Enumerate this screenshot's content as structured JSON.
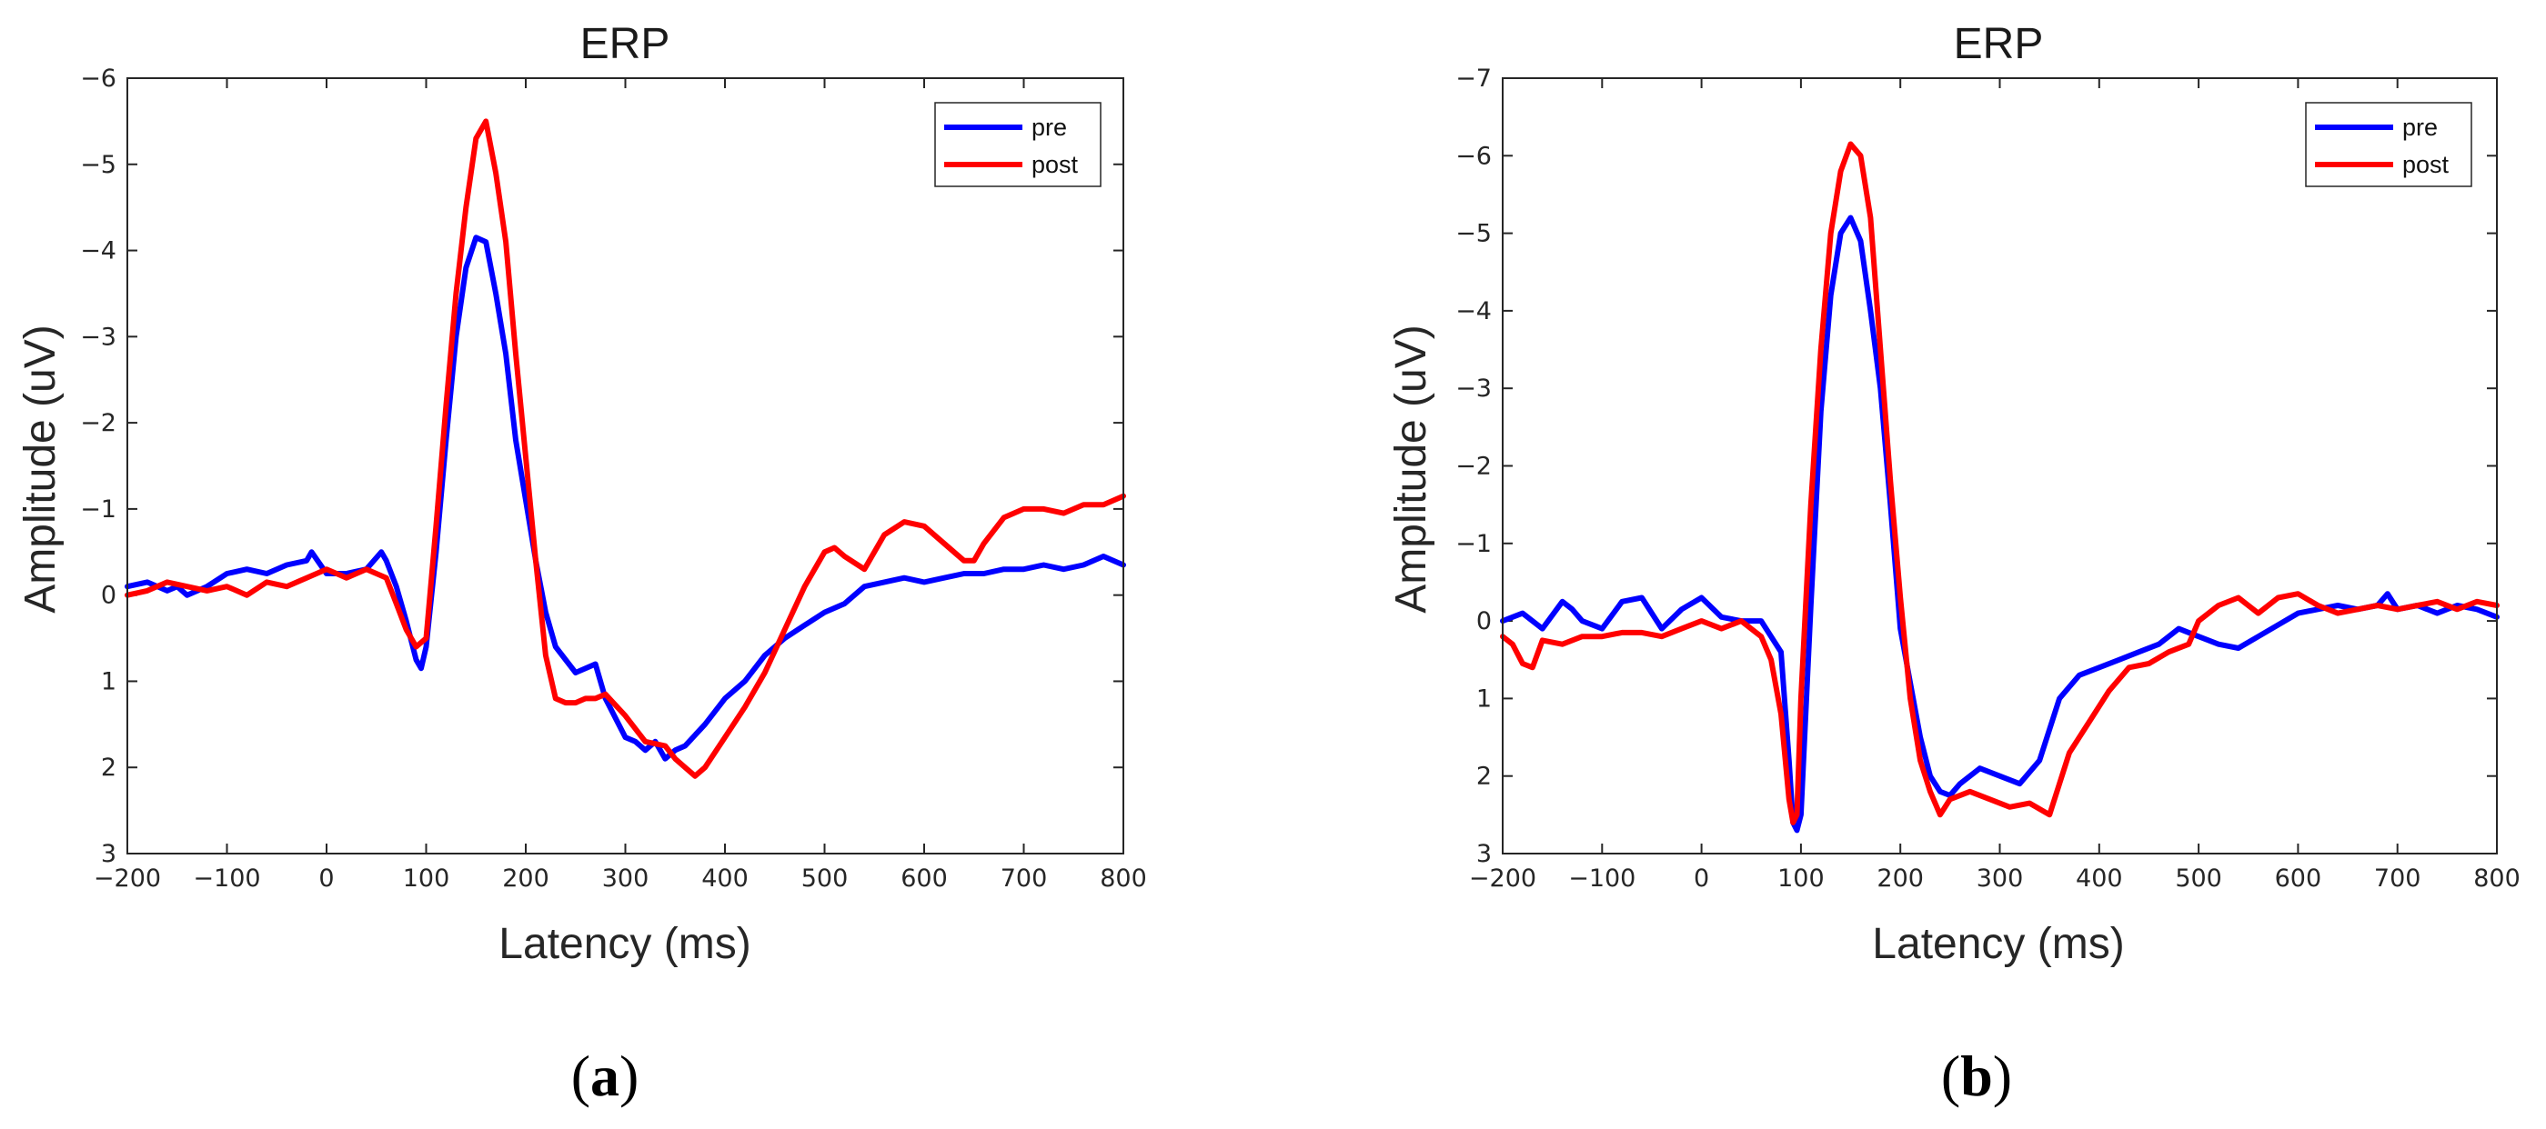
{
  "chart_data": [
    {
      "type": "line",
      "panel": "(a)",
      "panel_letter": "a",
      "title": "ERP",
      "xlabel": "Latency (ms)",
      "ylabel": "Amplitude (uV)",
      "xlim": [
        -200,
        800
      ],
      "ylim": [
        -6,
        3
      ],
      "y_reversed": true,
      "xticks": [
        -200,
        -100,
        0,
        100,
        200,
        300,
        400,
        500,
        600,
        700,
        800
      ],
      "yticks": [
        -6,
        -5,
        -4,
        -3,
        -2,
        -1,
        0,
        1,
        2,
        3
      ],
      "grid": false,
      "legend_position": "top-right",
      "series": [
        {
          "name": "pre",
          "color": "#0000ff",
          "x": [
            -200,
            -180,
            -160,
            -150,
            -140,
            -120,
            -100,
            -80,
            -60,
            -40,
            -20,
            -15,
            0,
            20,
            40,
            55,
            60,
            70,
            80,
            90,
            95,
            100,
            110,
            120,
            130,
            140,
            150,
            160,
            170,
            180,
            190,
            200,
            210,
            220,
            230,
            250,
            260,
            270,
            280,
            300,
            310,
            320,
            330,
            340,
            350,
            360,
            380,
            400,
            420,
            440,
            460,
            480,
            500,
            520,
            540,
            560,
            580,
            600,
            620,
            640,
            660,
            680,
            700,
            720,
            740,
            760,
            780,
            790,
            800
          ],
          "y": [
            -0.1,
            -0.15,
            -0.05,
            -0.1,
            0,
            -0.1,
            -0.25,
            -0.3,
            -0.25,
            -0.35,
            -0.4,
            -0.5,
            -0.25,
            -0.25,
            -0.3,
            -0.5,
            -0.4,
            -0.1,
            0.3,
            0.75,
            0.85,
            0.6,
            -0.5,
            -1.8,
            -3.0,
            -3.8,
            -4.15,
            -4.1,
            -3.5,
            -2.8,
            -1.8,
            -1.1,
            -0.4,
            0.2,
            0.6,
            0.9,
            0.85,
            0.8,
            1.2,
            1.65,
            1.7,
            1.8,
            1.7,
            1.9,
            1.8,
            1.75,
            1.5,
            1.2,
            1.0,
            0.7,
            0.5,
            0.35,
            0.2,
            0.1,
            -0.1,
            -0.15,
            -0.2,
            -0.15,
            -0.2,
            -0.25,
            -0.25,
            -0.3,
            -0.3,
            -0.35,
            -0.3,
            -0.35,
            -0.45,
            -0.4,
            -0.35
          ]
        },
        {
          "name": "post",
          "color": "#ff0000",
          "x": [
            -200,
            -180,
            -160,
            -140,
            -120,
            -100,
            -80,
            -60,
            -40,
            -20,
            0,
            20,
            40,
            60,
            70,
            80,
            90,
            100,
            110,
            120,
            130,
            140,
            150,
            160,
            170,
            180,
            190,
            200,
            210,
            220,
            230,
            240,
            250,
            260,
            270,
            280,
            300,
            320,
            340,
            350,
            360,
            370,
            380,
            400,
            420,
            440,
            460,
            480,
            500,
            510,
            520,
            540,
            560,
            580,
            600,
            620,
            640,
            650,
            660,
            680,
            700,
            720,
            740,
            760,
            780,
            800
          ],
          "y": [
            0,
            -0.05,
            -0.15,
            -0.1,
            -0.05,
            -0.1,
            0,
            -0.15,
            -0.1,
            -0.2,
            -0.3,
            -0.2,
            -0.3,
            -0.2,
            0.1,
            0.4,
            0.6,
            0.5,
            -0.8,
            -2.2,
            -3.5,
            -4.5,
            -5.3,
            -5.5,
            -4.9,
            -4.1,
            -2.8,
            -1.6,
            -0.4,
            0.7,
            1.2,
            1.25,
            1.25,
            1.2,
            1.2,
            1.15,
            1.4,
            1.7,
            1.75,
            1.9,
            2.0,
            2.1,
            2.0,
            1.65,
            1.3,
            0.9,
            0.4,
            -0.1,
            -0.5,
            -0.55,
            -0.45,
            -0.3,
            -0.7,
            -0.85,
            -0.8,
            -0.6,
            -0.4,
            -0.4,
            -0.6,
            -0.9,
            -1.0,
            -1.0,
            -0.95,
            -1.05,
            -1.05,
            -1.15
          ]
        }
      ]
    },
    {
      "type": "line",
      "panel": "(b)",
      "panel_letter": "b",
      "title": "ERP",
      "xlabel": "Latency (ms)",
      "ylabel": "Amplitude (uV)",
      "xlim": [
        -200,
        800
      ],
      "ylim": [
        -7,
        3
      ],
      "y_reversed": true,
      "xticks": [
        -200,
        -100,
        0,
        100,
        200,
        300,
        400,
        500,
        600,
        700,
        800
      ],
      "yticks": [
        -7,
        -6,
        -5,
        -4,
        -3,
        -2,
        -1,
        0,
        1,
        2,
        3
      ],
      "grid": false,
      "legend_position": "top-right",
      "series": [
        {
          "name": "pre",
          "color": "#0000ff",
          "x": [
            -200,
            -180,
            -160,
            -140,
            -130,
            -120,
            -100,
            -80,
            -60,
            -40,
            -20,
            0,
            20,
            40,
            60,
            70,
            80,
            88,
            92,
            96,
            100,
            110,
            120,
            130,
            140,
            150,
            160,
            170,
            180,
            190,
            200,
            210,
            220,
            230,
            240,
            250,
            260,
            280,
            300,
            320,
            340,
            360,
            380,
            400,
            420,
            440,
            460,
            480,
            500,
            520,
            540,
            560,
            580,
            600,
            620,
            640,
            660,
            680,
            690,
            700,
            720,
            740,
            760,
            780,
            800
          ],
          "y": [
            0,
            -0.1,
            0.1,
            -0.25,
            -0.15,
            0,
            0.1,
            -0.25,
            -0.3,
            0.1,
            -0.15,
            -0.3,
            -0.05,
            0,
            0,
            0.2,
            0.4,
            1.8,
            2.6,
            2.7,
            2.5,
            -0.2,
            -2.7,
            -4.2,
            -5.0,
            -5.2,
            -4.9,
            -4.0,
            -3.0,
            -1.5,
            0.1,
            0.8,
            1.5,
            2.0,
            2.2,
            2.25,
            2.1,
            1.9,
            2.0,
            2.1,
            1.8,
            1.0,
            0.7,
            0.6,
            0.5,
            0.4,
            0.3,
            0.1,
            0.2,
            0.3,
            0.35,
            0.2,
            0.05,
            -0.1,
            -0.15,
            -0.2,
            -0.15,
            -0.2,
            -0.35,
            -0.15,
            -0.2,
            -0.1,
            -0.2,
            -0.15,
            -0.05
          ]
        },
        {
          "name": "post",
          "color": "#ff0000",
          "x": [
            -200,
            -190,
            -180,
            -170,
            -160,
            -140,
            -120,
            -100,
            -80,
            -60,
            -40,
            -20,
            0,
            20,
            40,
            60,
            70,
            80,
            88,
            92,
            96,
            100,
            110,
            120,
            130,
            140,
            150,
            160,
            170,
            180,
            190,
            200,
            210,
            220,
            230,
            240,
            250,
            270,
            290,
            310,
            330,
            350,
            370,
            390,
            410,
            430,
            450,
            470,
            490,
            500,
            520,
            540,
            560,
            580,
            600,
            620,
            640,
            660,
            680,
            700,
            720,
            740,
            760,
            780,
            800
          ],
          "y": [
            0.2,
            0.3,
            0.55,
            0.6,
            0.25,
            0.3,
            0.2,
            0.2,
            0.15,
            0.15,
            0.2,
            0.1,
            0,
            0.1,
            0,
            0.2,
            0.5,
            1.2,
            2.3,
            2.6,
            2.5,
            1.0,
            -1.5,
            -3.5,
            -5.0,
            -5.8,
            -6.15,
            -6.0,
            -5.2,
            -3.5,
            -1.8,
            -0.3,
            1.0,
            1.8,
            2.2,
            2.5,
            2.3,
            2.2,
            2.3,
            2.4,
            2.35,
            2.5,
            1.7,
            1.3,
            0.9,
            0.6,
            0.55,
            0.4,
            0.3,
            0.0,
            -0.2,
            -0.3,
            -0.1,
            -0.3,
            -0.35,
            -0.2,
            -0.1,
            -0.15,
            -0.2,
            -0.15,
            -0.2,
            -0.25,
            -0.15,
            -0.25,
            -0.2
          ]
        }
      ]
    }
  ]
}
